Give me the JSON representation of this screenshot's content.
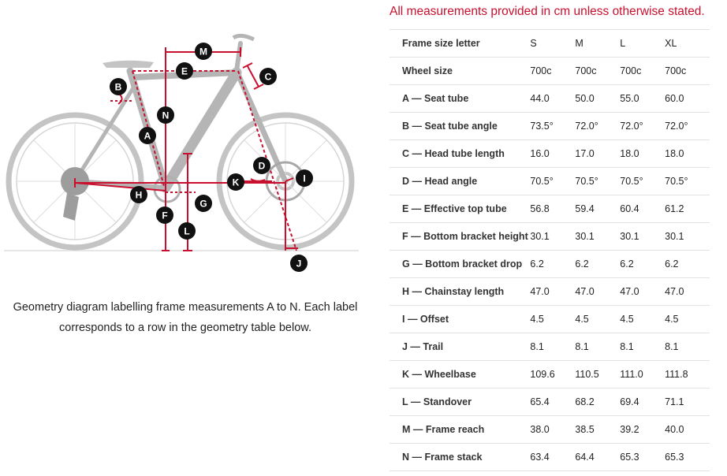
{
  "note": "All measurements provided in cm unless otherwise stated.",
  "caption": "Geometry diagram labelling frame measurements A to N. Each label corresponds to a row in the geometry table below.",
  "diagram": {
    "labels": [
      "A",
      "B",
      "C",
      "D",
      "E",
      "F",
      "G",
      "H",
      "I",
      "J",
      "K",
      "L",
      "M",
      "N"
    ]
  },
  "colors": {
    "accent": "#c8102e",
    "badge": "#111111",
    "bike": "#bdbdbd"
  },
  "table": {
    "header": {
      "label": "Frame size letter",
      "sizes": [
        "S",
        "M",
        "L",
        "XL"
      ]
    },
    "rows": [
      {
        "label": "Wheel size",
        "values": [
          "700c",
          "700c",
          "700c",
          "700c"
        ]
      },
      {
        "label": "A — Seat tube",
        "values": [
          "44.0",
          "50.0",
          "55.0",
          "60.0"
        ]
      },
      {
        "label": "B — Seat tube angle",
        "values": [
          "73.5°",
          "72.0°",
          "72.0°",
          "72.0°"
        ]
      },
      {
        "label": "C — Head tube length",
        "values": [
          "16.0",
          "17.0",
          "18.0",
          "18.0"
        ]
      },
      {
        "label": "D — Head angle",
        "values": [
          "70.5°",
          "70.5°",
          "70.5°",
          "70.5°"
        ]
      },
      {
        "label": "E — Effective top tube",
        "values": [
          "56.8",
          "59.4",
          "60.4",
          "61.2"
        ]
      },
      {
        "label": "F — Bottom bracket height",
        "values": [
          "30.1",
          "30.1",
          "30.1",
          "30.1"
        ]
      },
      {
        "label": "G — Bottom bracket drop",
        "values": [
          "6.2",
          "6.2",
          "6.2",
          "6.2"
        ]
      },
      {
        "label": "H — Chainstay length",
        "values": [
          "47.0",
          "47.0",
          "47.0",
          "47.0"
        ]
      },
      {
        "label": "I — Offset",
        "values": [
          "4.5",
          "4.5",
          "4.5",
          "4.5"
        ]
      },
      {
        "label": "J — Trail",
        "values": [
          "8.1",
          "8.1",
          "8.1",
          "8.1"
        ]
      },
      {
        "label": "K — Wheelbase",
        "values": [
          "109.6",
          "110.5",
          "111.0",
          "111.8"
        ]
      },
      {
        "label": "L — Standover",
        "values": [
          "65.4",
          "68.2",
          "69.4",
          "71.1"
        ]
      },
      {
        "label": "M — Frame reach",
        "values": [
          "38.0",
          "38.5",
          "39.2",
          "40.0"
        ]
      },
      {
        "label": "N — Frame stack",
        "values": [
          "63.4",
          "64.4",
          "65.3",
          "65.3"
        ]
      }
    ]
  }
}
